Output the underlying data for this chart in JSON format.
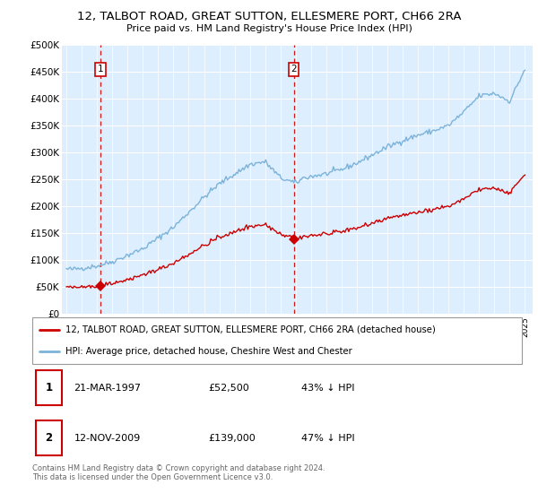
{
  "title": "12, TALBOT ROAD, GREAT SUTTON, ELLESMERE PORT, CH66 2RA",
  "subtitle": "Price paid vs. HM Land Registry's House Price Index (HPI)",
  "legend_line1": "12, TALBOT ROAD, GREAT SUTTON, ELLESMERE PORT, CH66 2RA (detached house)",
  "legend_line2": "HPI: Average price, detached house, Cheshire West and Chester",
  "footnote": "Contains HM Land Registry data © Crown copyright and database right 2024.\nThis data is licensed under the Open Government Licence v3.0.",
  "sale1_date": "21-MAR-1997",
  "sale1_price": "£52,500",
  "sale1_hpi": "43% ↓ HPI",
  "sale1_year": 1997.21,
  "sale1_value": 52500,
  "sale2_date": "12-NOV-2009",
  "sale2_price": "£139,000",
  "sale2_hpi": "47% ↓ HPI",
  "sale2_year": 2009.87,
  "sale2_value": 139000,
  "red_line_color": "#cc0000",
  "blue_line_color": "#7bb3d9",
  "plot_bg_color": "#ddeeff",
  "grid_color": "#ffffff",
  "ylim": [
    0,
    500000
  ],
  "yticks": [
    0,
    50000,
    100000,
    150000,
    200000,
    250000,
    300000,
    350000,
    400000,
    450000,
    500000
  ],
  "xlim_start": 1994.7,
  "xlim_end": 2025.5
}
